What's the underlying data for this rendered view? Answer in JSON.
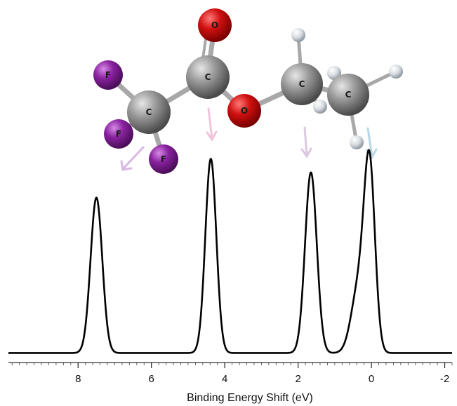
{
  "chart_data": {
    "type": "line",
    "title": "",
    "xlabel": "Binding Energy Shift (eV)",
    "ylabel": "",
    "xlim": [
      9.9,
      -2.2
    ],
    "x_reversed": true,
    "x_ticks": [
      8,
      6,
      4,
      2,
      0,
      -2
    ],
    "x_tick_labels": [
      "8",
      "6",
      "4",
      "2",
      "0",
      "-2"
    ],
    "minor_tick_step": 0.2,
    "grid": false,
    "legend": "none",
    "series": [
      {
        "color": "#000000",
        "baseline": 0.02,
        "peaks": [
          {
            "center": 7.5,
            "height": 0.8,
            "width": 0.16
          },
          {
            "center": 4.38,
            "height": 1.0,
            "width": 0.15
          },
          {
            "center": 1.65,
            "height": 0.93,
            "width": 0.16
          },
          {
            "center": 0.05,
            "height": 0.93,
            "width": 0.15
          },
          {
            "center": 0.35,
            "height": 0.33,
            "width": 0.2
          }
        ]
      }
    ]
  },
  "molecule": {
    "atoms": [
      {
        "label": "O",
        "element": "oxygen"
      },
      {
        "label": "C",
        "element": "carbon"
      },
      {
        "label": "F",
        "element": "fluorine"
      },
      {
        "label": "C",
        "element": "carbon"
      },
      {
        "label": "F",
        "element": "fluorine"
      },
      {
        "label": "F",
        "element": "fluorine"
      },
      {
        "label": "O",
        "element": "oxygen"
      },
      {
        "label": "C",
        "element": "carbon"
      },
      {
        "label": "C",
        "element": "carbon"
      }
    ],
    "colors": {
      "carbon": "#8a8a8a",
      "oxygen": "#d01010",
      "fluorine": "#8a22a0",
      "hydrogen": "#d8dde2"
    },
    "arrow_colors": [
      "#d9b8e6",
      "#f2c4dc",
      "#dcc8e0",
      "#b9d8e6"
    ]
  }
}
